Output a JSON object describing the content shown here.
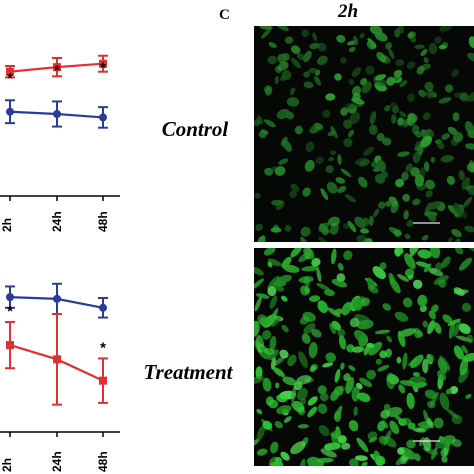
{
  "panel_letter": "C",
  "time_label": "2h",
  "row_labels": {
    "top": "Control",
    "bottom": "Treatment"
  },
  "colors": {
    "blue": "#2a3c9a",
    "red": "#e03030",
    "cell_green": "#46d046",
    "background": "#050805"
  },
  "chart_data": [
    {
      "type": "line",
      "categories": [
        "2h",
        "24h",
        "48h"
      ],
      "series": [
        {
          "color": "#2a3c9a",
          "values": [
            58,
            56,
            53
          ],
          "errors": [
            10,
            11,
            9
          ]
        },
        {
          "color": "#e03030",
          "values": [
            93,
            97,
            100
          ],
          "errors": [
            5,
            8,
            7
          ]
        }
      ],
      "significance": [
        "*",
        "*",
        "*"
      ],
      "significance_series": 1,
      "ylim": [
        0,
        140
      ]
    },
    {
      "type": "line",
      "categories": [
        "2h",
        "24h",
        "48h"
      ],
      "series": [
        {
          "color": "#2a3c9a",
          "values": [
            396,
            394,
            384
          ],
          "errors": [
            12,
            17,
            11
          ]
        },
        {
          "color": "#e03030",
          "values": [
            342,
            326,
            302
          ],
          "errors": [
            26,
            51,
            25
          ]
        }
      ],
      "significance": [
        "*",
        "",
        "*"
      ],
      "significance_series": 1,
      "ylim": [
        260,
        440
      ]
    }
  ]
}
